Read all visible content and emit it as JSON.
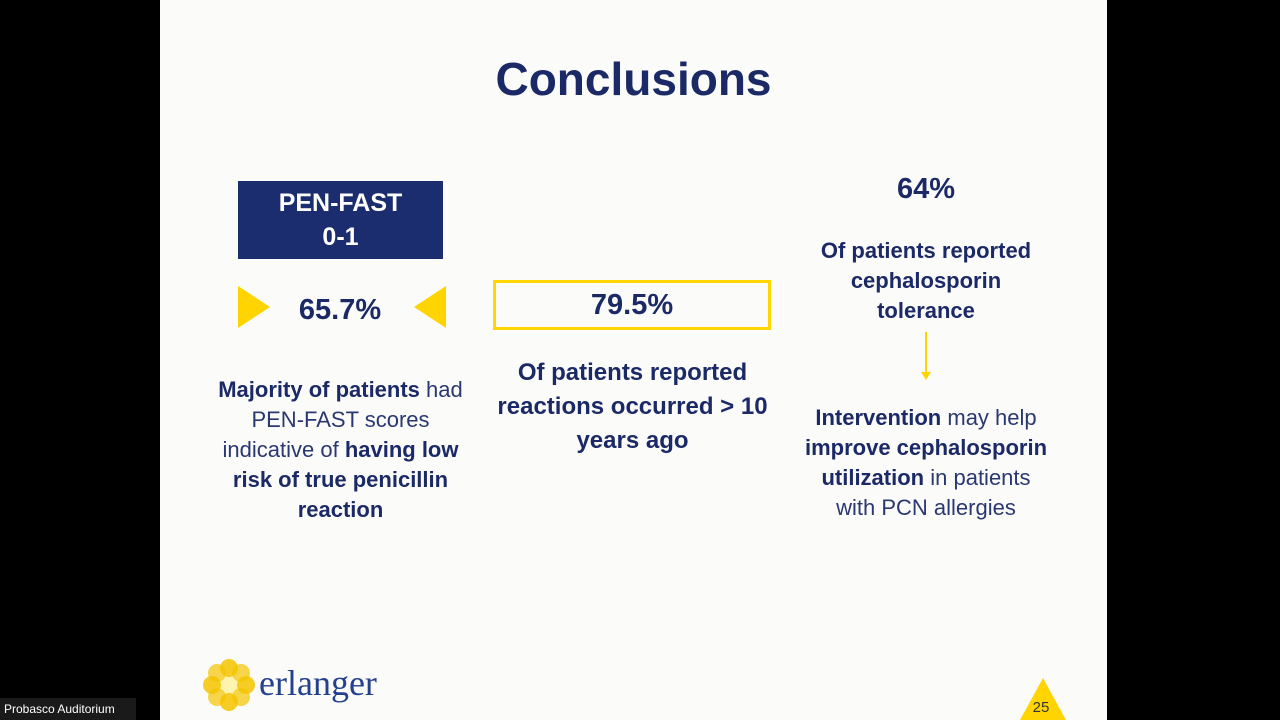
{
  "slide": {
    "title": "Conclusions",
    "left": {
      "box_lines": [
        "PEN-FAST",
        "0-1"
      ],
      "stat": "65.7%",
      "description": [
        "Majority of patients",
        "had PEN-FAST scores indicative of",
        "having low risk of true penicillin reaction"
      ]
    },
    "middle": {
      "stat": "79.5%",
      "description": "Of patients reported reactions occurred > 10 years ago"
    },
    "right": {
      "stat": "64%",
      "description": "Of patients reported cephalosporin tolerance",
      "intervention": [
        "Intervention",
        "may help",
        "improve cephalosporin utilization",
        "in patients with PCN allergies"
      ]
    },
    "logo": "erlanger",
    "page_number": "25"
  },
  "caption": "Probasco Auditorium"
}
